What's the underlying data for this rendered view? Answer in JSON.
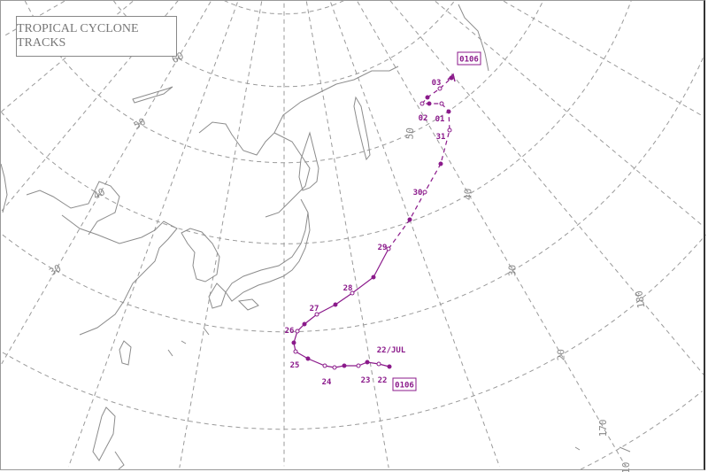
{
  "title": "TROPICAL CYCLONE TRACKS",
  "colors": {
    "track": "#8b1a8b",
    "grid": "#9a9a9a",
    "coast": "#8c8c8c"
  },
  "grid_labels": {
    "latitudes_left": [
      "60",
      "50",
      "40",
      "30"
    ],
    "latitudes_right": [
      "50",
      "40",
      "30",
      "20",
      "10"
    ],
    "longitudes": [
      "170",
      "180"
    ]
  },
  "cyclone": {
    "id": "0106",
    "start_label": "22/JUL",
    "day_labels": [
      "22",
      "23",
      "24",
      "25",
      "26",
      "27",
      "28",
      "29",
      "30",
      "31",
      "01",
      "02",
      "03"
    ]
  }
}
